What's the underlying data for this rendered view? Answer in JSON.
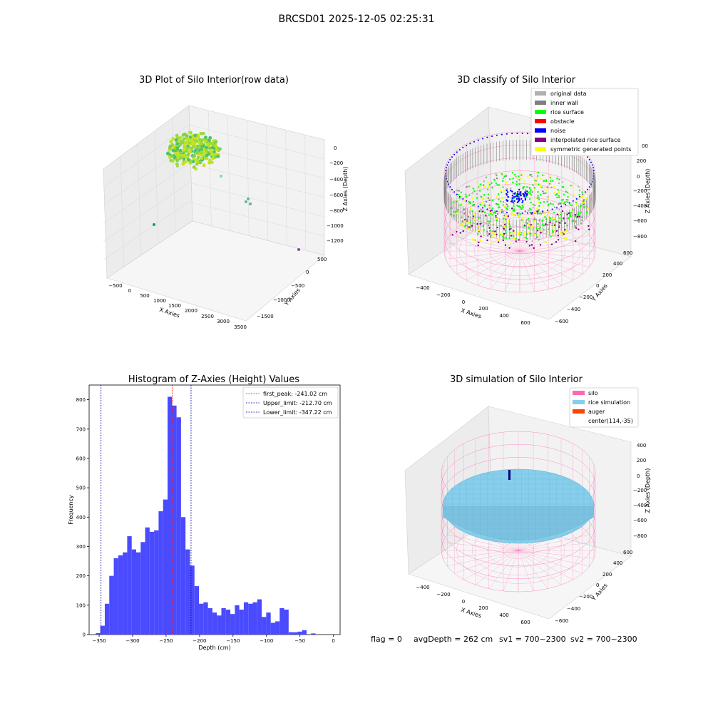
{
  "figure": {
    "suptitle": "BRCSD01 2025-12-05 02:25:31",
    "footer": {
      "flag": "flag = 0",
      "avg_depth": "avgDepth = 262 cm",
      "sv1": "sv1 = 700~2300",
      "sv2": "sv2 = 700~2300"
    }
  },
  "colors": {
    "hist_bar": "#4a4aff",
    "peak_line": "#ff0000",
    "limit_line": "#0000aa",
    "silo": "#ff69b4",
    "rice_sim": "#87ceeb",
    "auger": "#ff4500",
    "original": "#b0b0b0",
    "inner_wall": "#808080",
    "rice_surface": "#00ff00",
    "obstacle": "#ff0000",
    "noise": "#0000ff",
    "interpolated": "#800080",
    "symmetric": "#ffff00"
  },
  "chart_data": [
    {
      "type": "scatter",
      "title": "3D Plot of Silo Interior(row data)",
      "xlabel": "X Axies",
      "ylabel": "Y Axies",
      "zlabel": "Z Axies (Depth)",
      "x_ticks": [
        "−500",
        "0",
        "500",
        "1000",
        "1500",
        "2000",
        "2500",
        "3000",
        "3500"
      ],
      "y_ticks": [
        "500",
        "0",
        "−500",
        "−1000",
        "−1500"
      ],
      "z_ticks": [
        "0",
        "−200",
        "−400",
        "−600",
        "−800",
        "−1000",
        "−1200"
      ],
      "outliers": [
        {
          "x": 450,
          "y": 200,
          "z": -380
        },
        {
          "x": 1650,
          "y": 150,
          "z": -580
        },
        {
          "x": 1600,
          "y": 200,
          "z": -620
        },
        {
          "x": 1700,
          "y": 150,
          "z": -650
        },
        {
          "x": -450,
          "y": -200,
          "z": -920
        },
        {
          "x": 3300,
          "y": -800,
          "z": -1150
        }
      ]
    },
    {
      "type": "scatter",
      "title": "3D classify of Silo Interior",
      "xlabel": "X Axies",
      "ylabel": "Y Axies",
      "zlabel": "Z Axies (Depth)",
      "x_ticks": [
        "−400",
        "−200",
        "0",
        "200",
        "400",
        "600"
      ],
      "y_ticks": [
        "600",
        "400",
        "200",
        "0",
        "−200",
        "−400",
        "−600"
      ],
      "z_ticks": [
        "200",
        "0",
        "−200",
        "−400",
        "−600",
        "−800"
      ],
      "z_top_partial": "00",
      "legend": [
        "original data",
        "inner wall",
        "rice surface",
        "obstacle",
        "noise",
        "interpolated rice surface",
        "symmetric generated points"
      ],
      "legend_position": "top-right"
    },
    {
      "type": "bar",
      "title": "Histogram of Z-Axies (Height) Values",
      "xlabel": "Depth (cm)",
      "ylabel": "Frequency",
      "xlim": [
        -365,
        10
      ],
      "ylim": [
        0,
        850
      ],
      "bin_start": -355,
      "bin_width": 6.7,
      "values": [
        5,
        30,
        105,
        200,
        260,
        270,
        280,
        335,
        290,
        280,
        315,
        365,
        350,
        355,
        420,
        460,
        810,
        780,
        740,
        400,
        290,
        235,
        165,
        105,
        110,
        90,
        75,
        65,
        90,
        85,
        70,
        100,
        85,
        110,
        105,
        110,
        120,
        60,
        75,
        40,
        45,
        90,
        85,
        8,
        8,
        10,
        15,
        0,
        4
      ],
      "x_ticks": [
        -350,
        -300,
        -250,
        -200,
        -150,
        -100,
        -50,
        0
      ],
      "x_tick_labels": [
        "−350",
        "−300",
        "−250",
        "−200",
        "−150",
        "−100",
        "−50",
        "0"
      ],
      "y_ticks": [
        0,
        100,
        200,
        300,
        400,
        500,
        600,
        700,
        800
      ],
      "y_tick_labels": [
        "0",
        "100",
        "200",
        "300",
        "400",
        "500",
        "600",
        "700",
        "800"
      ],
      "lines": [
        {
          "name": "first_peak: -241.02 cm",
          "x": -241.02,
          "color": "#ff0000"
        },
        {
          "name": "Upper_limit: -212.70 cm",
          "x": -212.7,
          "color": "#0000aa"
        },
        {
          "name": "Lower_limit: -347.22 cm",
          "x": -347.22,
          "color": "#0000aa"
        }
      ],
      "legend_position": "top-right"
    },
    {
      "type": "scatter",
      "title": "3D simulation of Silo Interior",
      "xlabel": "X Axies",
      "ylabel": "Y Axies",
      "zlabel": "Z Axies (Depth)",
      "x_ticks": [
        "−400",
        "−200",
        "0",
        "200",
        "400",
        "600"
      ],
      "y_ticks": [
        "600",
        "400",
        "200",
        "0",
        "−200",
        "−400",
        "−600"
      ],
      "z_ticks": [
        "400",
        "200",
        "0",
        "−200",
        "−400",
        "−600",
        "−800"
      ],
      "legend": [
        "silo",
        "rice simulation",
        "auger",
        "center(114,-35)"
      ],
      "legend_position": "top-right"
    }
  ]
}
